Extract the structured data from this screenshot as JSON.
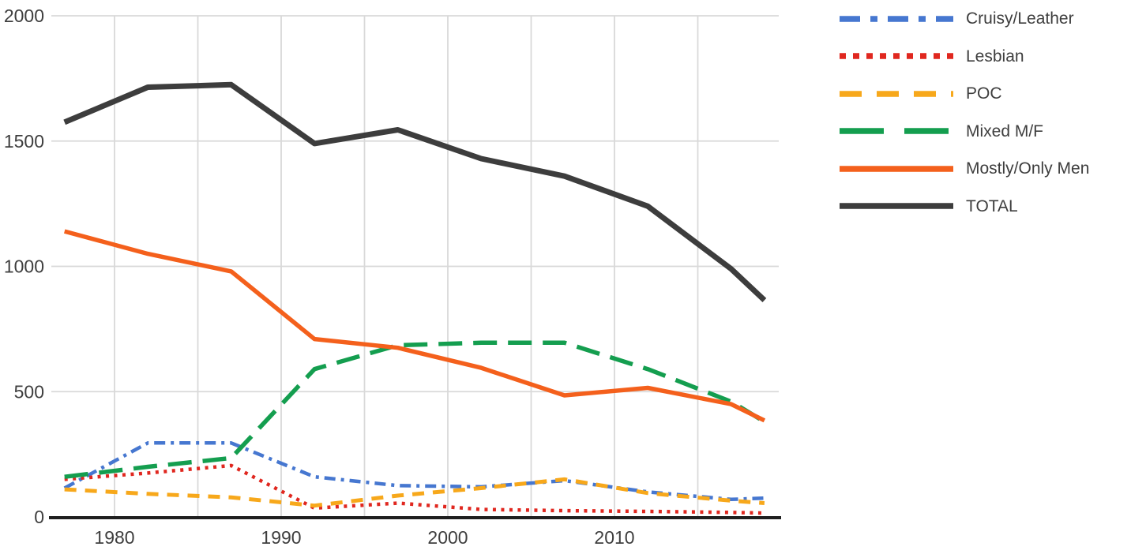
{
  "chart_data": {
    "type": "line",
    "x": [
      1977,
      1982,
      1987,
      1992,
      1997,
      2002,
      2007,
      2012,
      2017,
      2019
    ],
    "series": [
      {
        "name": "Cruisy/Leather",
        "color": "#4677d0",
        "dash": "14 7 4 7",
        "legend_dash": "26 13 9 13",
        "width": 4.5,
        "values": [
          115,
          295,
          295,
          160,
          125,
          120,
          145,
          100,
          70,
          75
        ]
      },
      {
        "name": "Lesbian",
        "color": "#e0271f",
        "dash": "4 6.5",
        "legend_dash": "8 9",
        "width": 4.5,
        "values": [
          150,
          175,
          205,
          35,
          55,
          30,
          25,
          22,
          18,
          15
        ]
      },
      {
        "name": "POC",
        "color": "#f7a81b",
        "dash": "15 11",
        "legend_dash": "28 19",
        "width": 5,
        "values": [
          110,
          92,
          78,
          45,
          85,
          115,
          150,
          95,
          65,
          55
        ]
      },
      {
        "name": "Mixed M/F",
        "color": "#149e4f",
        "dash": "30 14",
        "legend_dash": "56 26",
        "width": 5.5,
        "values": [
          160,
          200,
          235,
          590,
          685,
          695,
          695,
          590,
          460,
          380
        ]
      },
      {
        "name": "Mostly/Only Men",
        "color": "#f4601c",
        "dash": "",
        "legend_dash": "",
        "width": 5.5,
        "values": [
          1140,
          1050,
          980,
          710,
          675,
          595,
          485,
          515,
          450,
          385
        ]
      },
      {
        "name": "TOTAL",
        "color": "#3d3d3d",
        "dash": "",
        "legend_dash": "",
        "width": 7,
        "values": [
          1575,
          1715,
          1725,
          1490,
          1545,
          1430,
          1360,
          1240,
          990,
          865
        ]
      }
    ],
    "title": "",
    "xlabel": "",
    "ylabel": "",
    "xlim": [
      1976.2,
      2019.9
    ],
    "ylim": [
      0,
      2000
    ],
    "x_ticks": [
      1980,
      1990,
      2000,
      2010
    ],
    "y_ticks": [
      0,
      500,
      1000,
      1500,
      2000
    ],
    "x_gridline_years": [
      1980,
      1985,
      1990,
      1995,
      2000,
      2005,
      2010,
      2015
    ],
    "grid": true,
    "legend_position": "right"
  },
  "axes": {
    "x_tick_labels": [
      "1980",
      "1990",
      "2000",
      "2010"
    ],
    "y_tick_labels": [
      "0",
      "500",
      "1000",
      "1500",
      "2000"
    ]
  },
  "colors": {
    "background": "#ffffff",
    "gridline": "#d9d9d9",
    "axis_line": "#1f1f1f",
    "tick_text": "#3e3e3e",
    "legend_text": "#3e3e3e"
  }
}
